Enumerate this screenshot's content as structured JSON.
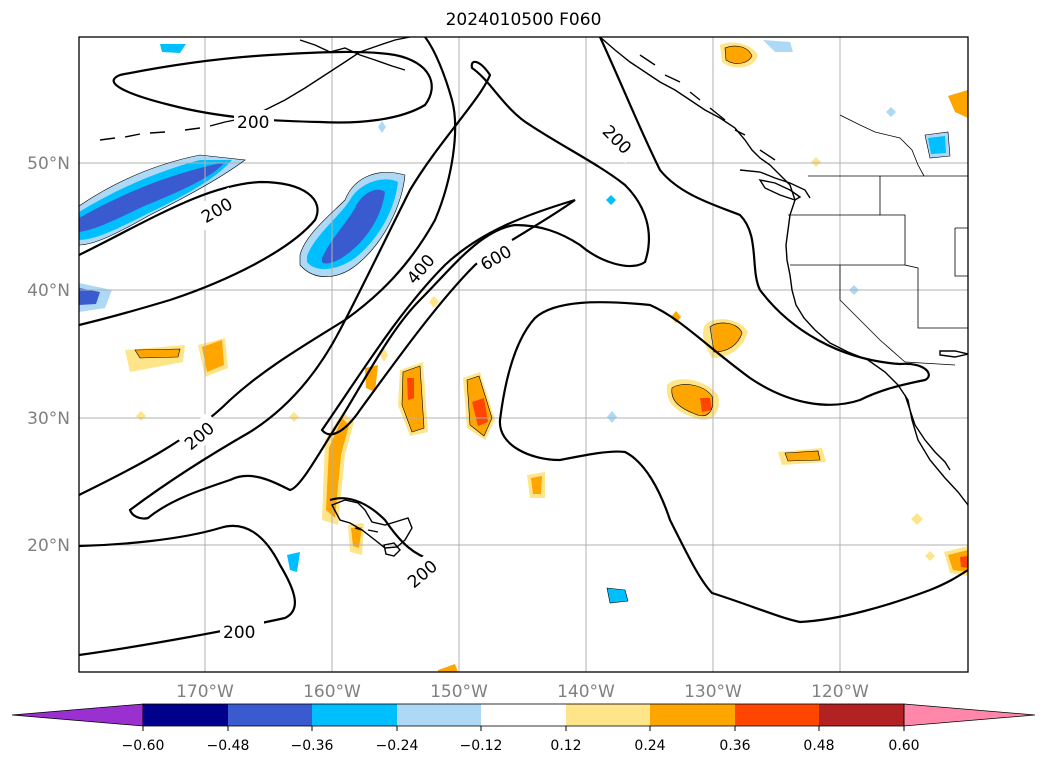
{
  "title": "2024010500 F060",
  "lat_labels": [
    "50°N",
    "40°N",
    "30°N",
    "20°N"
  ],
  "lon_labels": [
    "170°W",
    "160°W",
    "150°W",
    "140°W",
    "130°W",
    "120°W"
  ],
  "contour_labels": [
    "200",
    "200",
    "200",
    "400",
    "600",
    "200",
    "200",
    "200"
  ],
  "colorbar": {
    "ticks": [
      "−0.60",
      "−0.48",
      "−0.36",
      "−0.24",
      "−0.12",
      "0.12",
      "0.24",
      "0.36",
      "0.48",
      "0.60"
    ],
    "colors": [
      "#9b30d0",
      "#00008b",
      "#3a5bd0",
      "#00bfff",
      "#add8f6",
      "#ffffff",
      "#ffe58a",
      "#ffa500",
      "#ff4500",
      "#b22222",
      "#ff88aa"
    ]
  },
  "colors": {
    "neg_light": "#add8f6",
    "neg_mid": "#00bfff",
    "neg_dark": "#3a5bd0",
    "pos_light": "#ffe58a",
    "pos_mid": "#ffa500",
    "pos_dark": "#ff4500",
    "grid": "#b0b0b0",
    "tick_label": "#808080"
  }
}
